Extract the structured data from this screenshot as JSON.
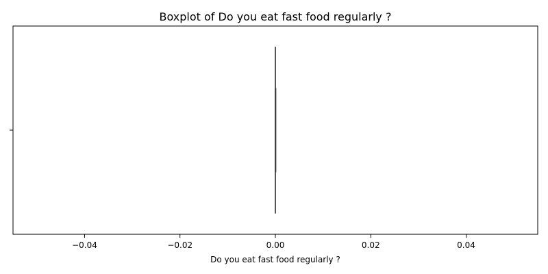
{
  "chart_data": {
    "type": "boxplot",
    "title": "Boxplot of Do you eat fast food regularly ?",
    "xlabel": "Do you eat fast food regularly ?",
    "ylabel": "",
    "xlim": [
      -0.055,
      0.055
    ],
    "x_ticks": [
      -0.04,
      -0.02,
      0.0,
      0.02,
      0.04
    ],
    "x_tick_labels": [
      "−0.04",
      "−0.02",
      "0.00",
      "0.02",
      "0.04"
    ],
    "y_categories": [
      ""
    ],
    "grid": false,
    "boxes": [
      {
        "min": 0.0,
        "q1": 0.0,
        "median": 0.0,
        "q3": 0.0,
        "max": 0.0
      }
    ],
    "colors": {
      "box_line": "#3f3f3f",
      "axis": "#000000"
    }
  }
}
